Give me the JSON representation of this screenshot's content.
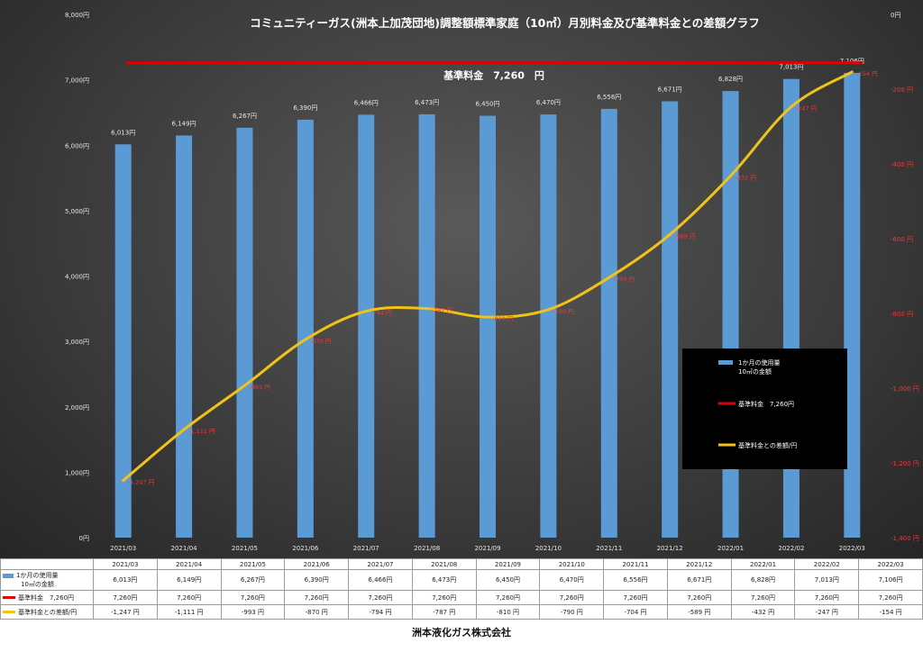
{
  "chart_data": {
    "type": "bar",
    "title": "コミュニティーガス(洲本上加茂団地)調整額標準家庭（10㎥）月別料金及び基準料金との差額グラフ",
    "categories": [
      "2021/03",
      "2021/04",
      "2021/05",
      "2021/06",
      "2021/07",
      "2021/08",
      "2021/09",
      "2021/10",
      "2021/11",
      "2021/12",
      "2022/01",
      "2022/02",
      "2022/03"
    ],
    "series": [
      {
        "name": "1か月の使用量\n10㎥の金額",
        "type": "bar",
        "axis": "left",
        "color": "#5b9bd5",
        "values": [
          6013,
          6149,
          6267,
          6390,
          6466,
          6473,
          6450,
          6470,
          6556,
          6671,
          6828,
          7013,
          7106
        ],
        "labels": [
          "6,013円",
          "6,149円",
          "6,267円",
          "6,390円",
          "6,466円",
          "6,473円",
          "6,450円",
          "6,470円",
          "6,556円",
          "6,671円",
          "6,828円",
          "7,013円",
          "7,106円"
        ]
      },
      {
        "name": "基準料金　7,260円",
        "type": "line",
        "axis": "left",
        "color": "#e00000",
        "values": [
          7260,
          7260,
          7260,
          7260,
          7260,
          7260,
          7260,
          7260,
          7260,
          7260,
          7260,
          7260,
          7260
        ],
        "labels": [
          "7,260円",
          "7,260円",
          "7,260円",
          "7,260円",
          "7,260円",
          "7,260円",
          "7,260円",
          "7,260円",
          "7,260円",
          "7,260円",
          "7,260円",
          "7,260円",
          "7,260円"
        ]
      },
      {
        "name": "基準料金との差額/円",
        "type": "line",
        "axis": "right",
        "color": "#f2c314",
        "values": [
          -1247,
          -1111,
          -993,
          -870,
          -794,
          -787,
          -810,
          -790,
          -704,
          -589,
          -432,
          -247,
          -154
        ],
        "labels": [
          "-1,247 円",
          "-1,111 円",
          "-993 円",
          "-870 円",
          "-794 円",
          "-787 円",
          "-810 円",
          "-790 円",
          "-704 円",
          "-589 円",
          "-432 円",
          "-247 円",
          "-154 円"
        ]
      }
    ],
    "left_axis": {
      "ylim": [
        0,
        8000
      ],
      "ticks": [
        "0円",
        "1,000円",
        "2,000円",
        "3,000円",
        "4,000円",
        "5,000円",
        "6,000円",
        "7,000円",
        "8,000円"
      ]
    },
    "right_axis": {
      "ylim": [
        -1400,
        0
      ],
      "ticks": [
        "-1,400 円",
        "-1,200 円",
        "-1,000 円",
        "-800 円",
        "-600 円",
        "-400 円",
        "-200 円",
        "0円"
      ]
    },
    "annotation": "基準料金　7,260　円",
    "legend_position": "right"
  },
  "legend": {
    "items": [
      {
        "label1": "1か月の使用量",
        "label2": "10㎥の金額"
      },
      {
        "label1": "基準料金　7,260円",
        "label2": ""
      },
      {
        "label1": "基準料金との差額/円",
        "label2": ""
      }
    ]
  },
  "table": {
    "row_labels": [
      {
        "line1": "1か月の使用量",
        "line2": "10㎥の金額"
      },
      {
        "line1": "基準料金　7,260円",
        "line2": ""
      },
      {
        "line1": "基準料金との差額/円",
        "line2": ""
      }
    ],
    "diff_cells": [
      "-1,247 円",
      "-1,111 円",
      "-993 円",
      "-870 円",
      "-794 円",
      "-787 円",
      "-810 円",
      "-790 円",
      "-704 円",
      "-589 円",
      "-432 円",
      "-247 円",
      "-154 円"
    ]
  },
  "footer": "洲本液化ガス株式会社",
  "colors": {
    "bar": "#5b9bd5",
    "base_line": "#e00000",
    "diff_line": "#f2c314",
    "diff_label": "#ff3030"
  }
}
